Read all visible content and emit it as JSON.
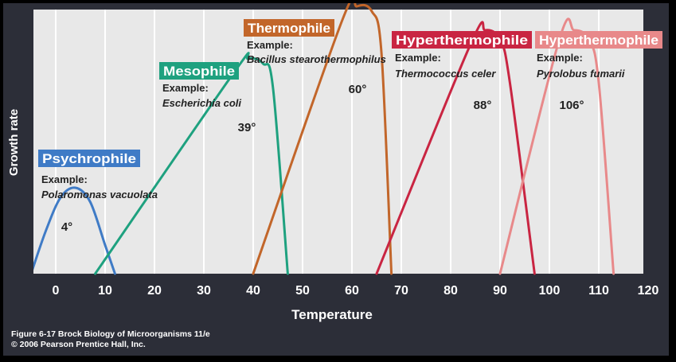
{
  "chart_data": {
    "type": "line",
    "title": "",
    "xlabel": "Temperature",
    "ylabel": "Growth rate",
    "xlim": [
      -5,
      120
    ],
    "x_ticks": [
      0,
      10,
      20,
      30,
      40,
      50,
      60,
      70,
      80,
      90,
      100,
      110,
      120
    ],
    "grid": true,
    "series": [
      {
        "name": "Psychrophile",
        "example_label": "Example:",
        "example": "Polaromonas vacuolata",
        "optimum_label": "4°",
        "optimum": 4,
        "color": "#3f7bc6",
        "points": [
          [
            -5,
            0
          ],
          [
            -2,
            0.18
          ],
          [
            1,
            0.32
          ],
          [
            4,
            0.36
          ],
          [
            7,
            0.3
          ],
          [
            10,
            0.12
          ],
          [
            12,
            0
          ]
        ]
      },
      {
        "name": "Mesophile",
        "example_label": "Example:",
        "example": "Escherichia coli",
        "optimum_label": "39°",
        "optimum": 39,
        "color": "#1ea17f",
        "points": [
          [
            8,
            0
          ],
          [
            36,
            0.84
          ],
          [
            39,
            0.9
          ],
          [
            42,
            0.88
          ],
          [
            44,
            0.78
          ],
          [
            47,
            0
          ]
        ]
      },
      {
        "name": "Thermophile",
        "example_label": "Example:",
        "example": "Bacillus stearothermophilus",
        "optimum_label": "60°",
        "optimum": 60,
        "color": "#c2662a",
        "points": [
          [
            40,
            0
          ],
          [
            58,
            1.06
          ],
          [
            61,
            1.12
          ],
          [
            64,
            1.1
          ],
          [
            66,
            0.92
          ],
          [
            68,
            0
          ]
        ]
      },
      {
        "name": "Hyperthermophile",
        "example_label": "Example:",
        "example": "Thermococcus celer",
        "optimum_label": "88°",
        "optimum": 88,
        "color": "#c92542",
        "points": [
          [
            65,
            0
          ],
          [
            84,
            0.96
          ],
          [
            87,
            1.02
          ],
          [
            90,
            0.98
          ],
          [
            92,
            0.8
          ],
          [
            97,
            0
          ]
        ]
      },
      {
        "name": "Hyperthermophile",
        "example_label": "Example:",
        "example": "Pyrolobus fumarii",
        "optimum_label": "106°",
        "optimum": 106,
        "color": "#e8898a",
        "points": [
          [
            90,
            0
          ],
          [
            102,
            0.98
          ],
          [
            105,
            1.02
          ],
          [
            108,
            0.98
          ],
          [
            110,
            0.8
          ],
          [
            113,
            0
          ]
        ]
      }
    ]
  },
  "caption": {
    "line1": "Figure 6-17  Brock Biology of Microorganisms 11/e",
    "line2": "© 2006 Pearson Prentice Hall, Inc."
  }
}
